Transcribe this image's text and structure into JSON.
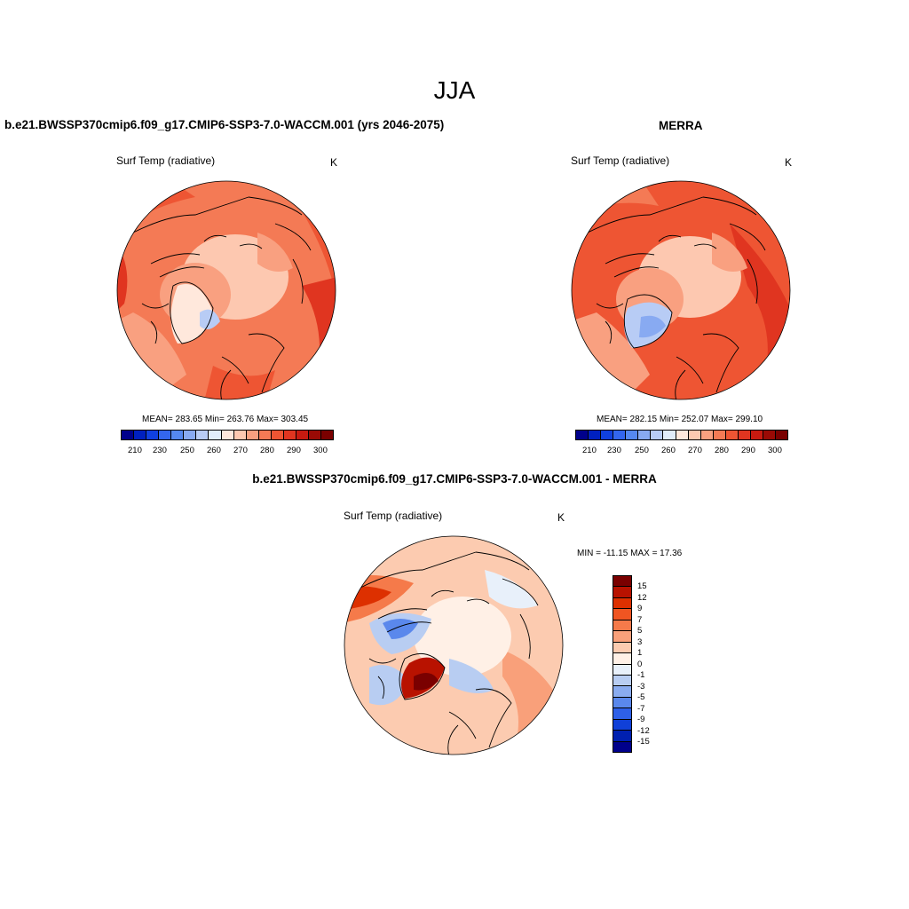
{
  "main_title": "JJA",
  "panels": {
    "model": {
      "title": "b.e21.BWSSP370cmip6.f09_g17.CMIP6-SSP3-7.0-WACCM.001 (yrs 2046-2075)",
      "variable": "Surf Temp (radiative)",
      "units": "K",
      "stats": "MEAN= 283.65  Min= 263.76  Max= 303.45"
    },
    "obs": {
      "title": "MERRA",
      "variable": "Surf Temp (radiative)",
      "units": "K",
      "stats": "MEAN= 282.15  Min= 252.07  Max= 299.10"
    },
    "diff": {
      "title": "b.e21.BWSSP370cmip6.f09_g17.CMIP6-SSP3-7.0-WACCM.001 - MERRA",
      "variable": "Surf Temp (radiative)",
      "units": "K",
      "stats": "MIN = -11.15 MAX =  17.36"
    }
  },
  "abs_colorbar": {
    "colors": [
      "#00008b",
      "#0020c0",
      "#1040e0",
      "#3366ee",
      "#5588f0",
      "#88aaf2",
      "#b8ccf5",
      "#e0ecfa",
      "#ffe8dc",
      "#fdc8b0",
      "#f9a080",
      "#f47a55",
      "#ee5533",
      "#e03520",
      "#c81a10",
      "#9a0a05",
      "#7a0000"
    ],
    "tick_labels": [
      "210",
      "230",
      "250",
      "260",
      "270",
      "280",
      "290",
      "300"
    ]
  },
  "diff_colorbar": {
    "colors": [
      "#7a0000",
      "#b81200",
      "#dd3000",
      "#f05522",
      "#f57a4a",
      "#f9a07a",
      "#fccbb0",
      "#fff0e6",
      "#e8f0fa",
      "#b8cdf2",
      "#8aacf0",
      "#5a88ec",
      "#2e60e8",
      "#1040d8",
      "#0020b0",
      "#00008b"
    ],
    "tick_labels": [
      "15",
      "12",
      "9",
      "7",
      "5",
      "3",
      "1",
      "0",
      "-1",
      "-3",
      "-5",
      "-7",
      "-9",
      "-12",
      "-15"
    ]
  }
}
